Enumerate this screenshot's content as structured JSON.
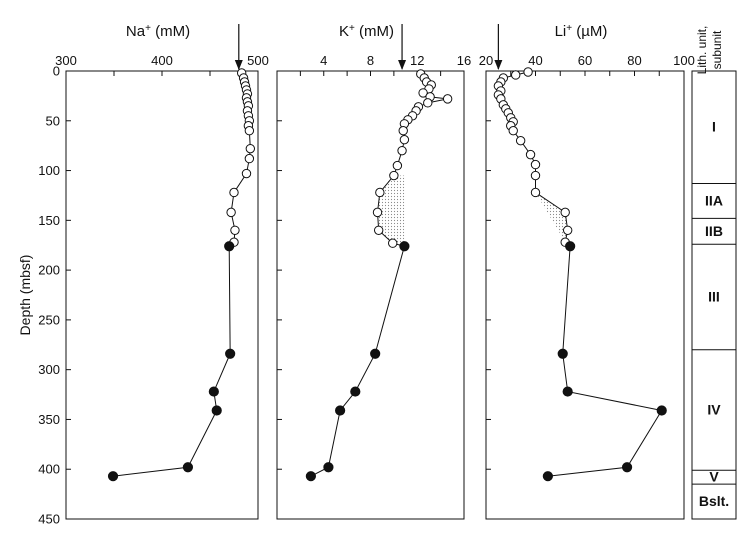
{
  "chart_data": {
    "type": "scatter",
    "ylabel": "Depth (mbsf)",
    "ylim": [
      0,
      450
    ],
    "yticks": [
      0,
      50,
      100,
      150,
      200,
      250,
      300,
      350,
      400,
      450
    ],
    "panels": [
      {
        "id": "na",
        "title_main": "Na",
        "title_sup": "+",
        "title_unit": " (mM)",
        "xlim": [
          300,
          500
        ],
        "xticks": [
          300,
          350,
          400,
          450,
          500
        ],
        "xtick_labels": [
          "300",
          "400",
          "500"
        ],
        "xtick_label_values": [
          300,
          400,
          500
        ],
        "arrow_value": 480,
        "open_points": [
          [
            483,
            2
          ],
          [
            485,
            7
          ],
          [
            486,
            11
          ],
          [
            487,
            15
          ],
          [
            488,
            19
          ],
          [
            489,
            23
          ],
          [
            488,
            27
          ],
          [
            489,
            31
          ],
          [
            490,
            35
          ],
          [
            489,
            40
          ],
          [
            490,
            45
          ],
          [
            491,
            50
          ],
          [
            490,
            55
          ],
          [
            491,
            60
          ],
          [
            492,
            78
          ],
          [
            491,
            88
          ],
          [
            488,
            103
          ],
          [
            475,
            122
          ],
          [
            472,
            142
          ],
          [
            476,
            160
          ],
          [
            475,
            172
          ]
        ],
        "closed_points": [
          [
            470,
            176
          ],
          [
            471,
            284
          ],
          [
            454,
            322
          ],
          [
            457,
            341
          ],
          [
            427,
            398
          ],
          [
            349,
            407
          ]
        ]
      },
      {
        "id": "k",
        "title_main": "K",
        "title_sup": "+",
        "title_unit": " (mM)",
        "xlim": [
          0,
          16
        ],
        "xticks": [
          0,
          2,
          4,
          6,
          8,
          10,
          12,
          14,
          16
        ],
        "xtick_labels": [
          "4",
          "8",
          "12",
          "16"
        ],
        "xtick_label_values": [
          4,
          8,
          12,
          16
        ],
        "arrow_value": 10.7,
        "open_points": [
          [
            12.3,
            3
          ],
          [
            12.6,
            7
          ],
          [
            12.8,
            11
          ],
          [
            13.2,
            14
          ],
          [
            13.0,
            18
          ],
          [
            12.5,
            22
          ],
          [
            13.1,
            26
          ],
          [
            14.6,
            28
          ],
          [
            12.9,
            32
          ],
          [
            12.1,
            36
          ],
          [
            11.9,
            40
          ],
          [
            11.6,
            45
          ],
          [
            11.2,
            49
          ],
          [
            10.9,
            53
          ],
          [
            10.8,
            60
          ],
          [
            10.9,
            69
          ],
          [
            10.7,
            80
          ],
          [
            10.3,
            95
          ],
          [
            10.0,
            105
          ],
          [
            8.8,
            122
          ],
          [
            8.6,
            142
          ],
          [
            8.7,
            160
          ],
          [
            9.9,
            173
          ]
        ],
        "closed_points": [
          [
            10.9,
            176
          ],
          [
            8.4,
            284
          ],
          [
            6.7,
            322
          ],
          [
            5.4,
            341
          ],
          [
            4.4,
            398
          ],
          [
            2.9,
            407
          ]
        ]
      },
      {
        "id": "li",
        "title_main": "Li",
        "title_sup": "+",
        "title_unit": " (µM)",
        "xlim": [
          20,
          100
        ],
        "xticks": [
          20,
          30,
          40,
          50,
          60,
          70,
          80,
          90,
          100
        ],
        "xtick_labels": [
          "20",
          "40",
          "60",
          "80",
          "100"
        ],
        "xtick_label_values": [
          20,
          40,
          60,
          80,
          100
        ],
        "arrow_value": 25,
        "open_points": [
          [
            37,
            1
          ],
          [
            32,
            4
          ],
          [
            27,
            7
          ],
          [
            26,
            11
          ],
          [
            25,
            15
          ],
          [
            26,
            20
          ],
          [
            25,
            24
          ],
          [
            26,
            28
          ],
          [
            27,
            34
          ],
          [
            28,
            38
          ],
          [
            29,
            42
          ],
          [
            30,
            47
          ],
          [
            31,
            51
          ],
          [
            30,
            55
          ],
          [
            31,
            60
          ],
          [
            34,
            70
          ],
          [
            38,
            84
          ],
          [
            40,
            94
          ],
          [
            40,
            105
          ],
          [
            40,
            122
          ],
          [
            52,
            142
          ],
          [
            53,
            160
          ],
          [
            52,
            172
          ]
        ],
        "closed_points": [
          [
            54,
            176
          ],
          [
            51,
            284
          ],
          [
            53,
            322
          ],
          [
            91,
            341
          ],
          [
            77,
            398
          ],
          [
            45,
            407
          ]
        ]
      }
    ],
    "shading": [
      {
        "panel": "k",
        "polygon": [
          [
            9.9,
            105
          ],
          [
            11.0,
            105
          ],
          [
            11.0,
            176
          ],
          [
            10.9,
            176
          ],
          [
            9.9,
            173
          ],
          [
            8.7,
            160
          ],
          [
            8.6,
            142
          ],
          [
            8.8,
            122
          ]
        ]
      },
      {
        "panel": "li",
        "polygon": [
          [
            40,
            122
          ],
          [
            52,
            142
          ],
          [
            53,
            160
          ],
          [
            52,
            172
          ]
        ]
      }
    ]
  },
  "lith_column": {
    "header_lines": [
      "Lith. unit,",
      "subunit"
    ],
    "units": [
      {
        "label": "I",
        "top": 0,
        "bottom": 113
      },
      {
        "label": "IIA",
        "top": 113,
        "bottom": 148
      },
      {
        "label": "IIB",
        "top": 148,
        "bottom": 174
      },
      {
        "label": "III",
        "top": 174,
        "bottom": 280
      },
      {
        "label": "IV",
        "top": 280,
        "bottom": 401
      },
      {
        "label": "V",
        "top": 401,
        "bottom": 415
      },
      {
        "label": "Bslt.",
        "top": 415,
        "bottom": 450
      }
    ]
  }
}
